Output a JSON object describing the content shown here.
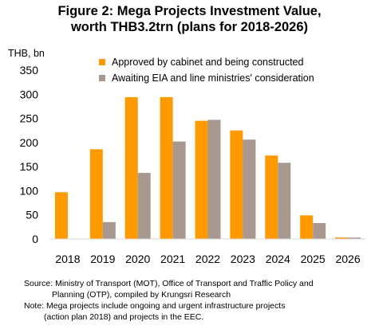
{
  "chart_data": {
    "type": "bar",
    "title_line1": "Figure 2: Mega Projects Investment Value,",
    "title_line2": "worth THB3.2trn (plans for 2018-2026)",
    "ylabel": "THB, bn",
    "xlabel": "",
    "ylim": [
      0,
      350
    ],
    "yticks": [
      "0",
      "50",
      "100",
      "150",
      "200",
      "250",
      "300",
      "350"
    ],
    "categories": [
      "2018",
      "2019",
      "2020",
      "2021",
      "2022",
      "2023",
      "2024",
      "2025",
      "2026"
    ],
    "series": [
      {
        "name": "Approved by cabinet and being constructed",
        "color": "#FF9900",
        "values": [
          97,
          186,
          294,
          294,
          245,
          225,
          173,
          49,
          3
        ]
      },
      {
        "name": "Awaiting EIA and line ministries' consideration",
        "color": "#A89890",
        "values": [
          0,
          35,
          137,
          202,
          247,
          206,
          158,
          33,
          3
        ]
      }
    ],
    "grid": false,
    "legend_position": "top-center"
  },
  "notes": {
    "source_line1": "Source: Ministry of Transport (MOT), Office of Transport and Traffic Policy and",
    "source_line2": "Planning (OTP), compiled by Krungsri Research",
    "note_line1": "Note: Mega projects include ongoing and urgent infrastructure projects",
    "note_line2": "(action plan 2018) and projects in the EEC."
  }
}
